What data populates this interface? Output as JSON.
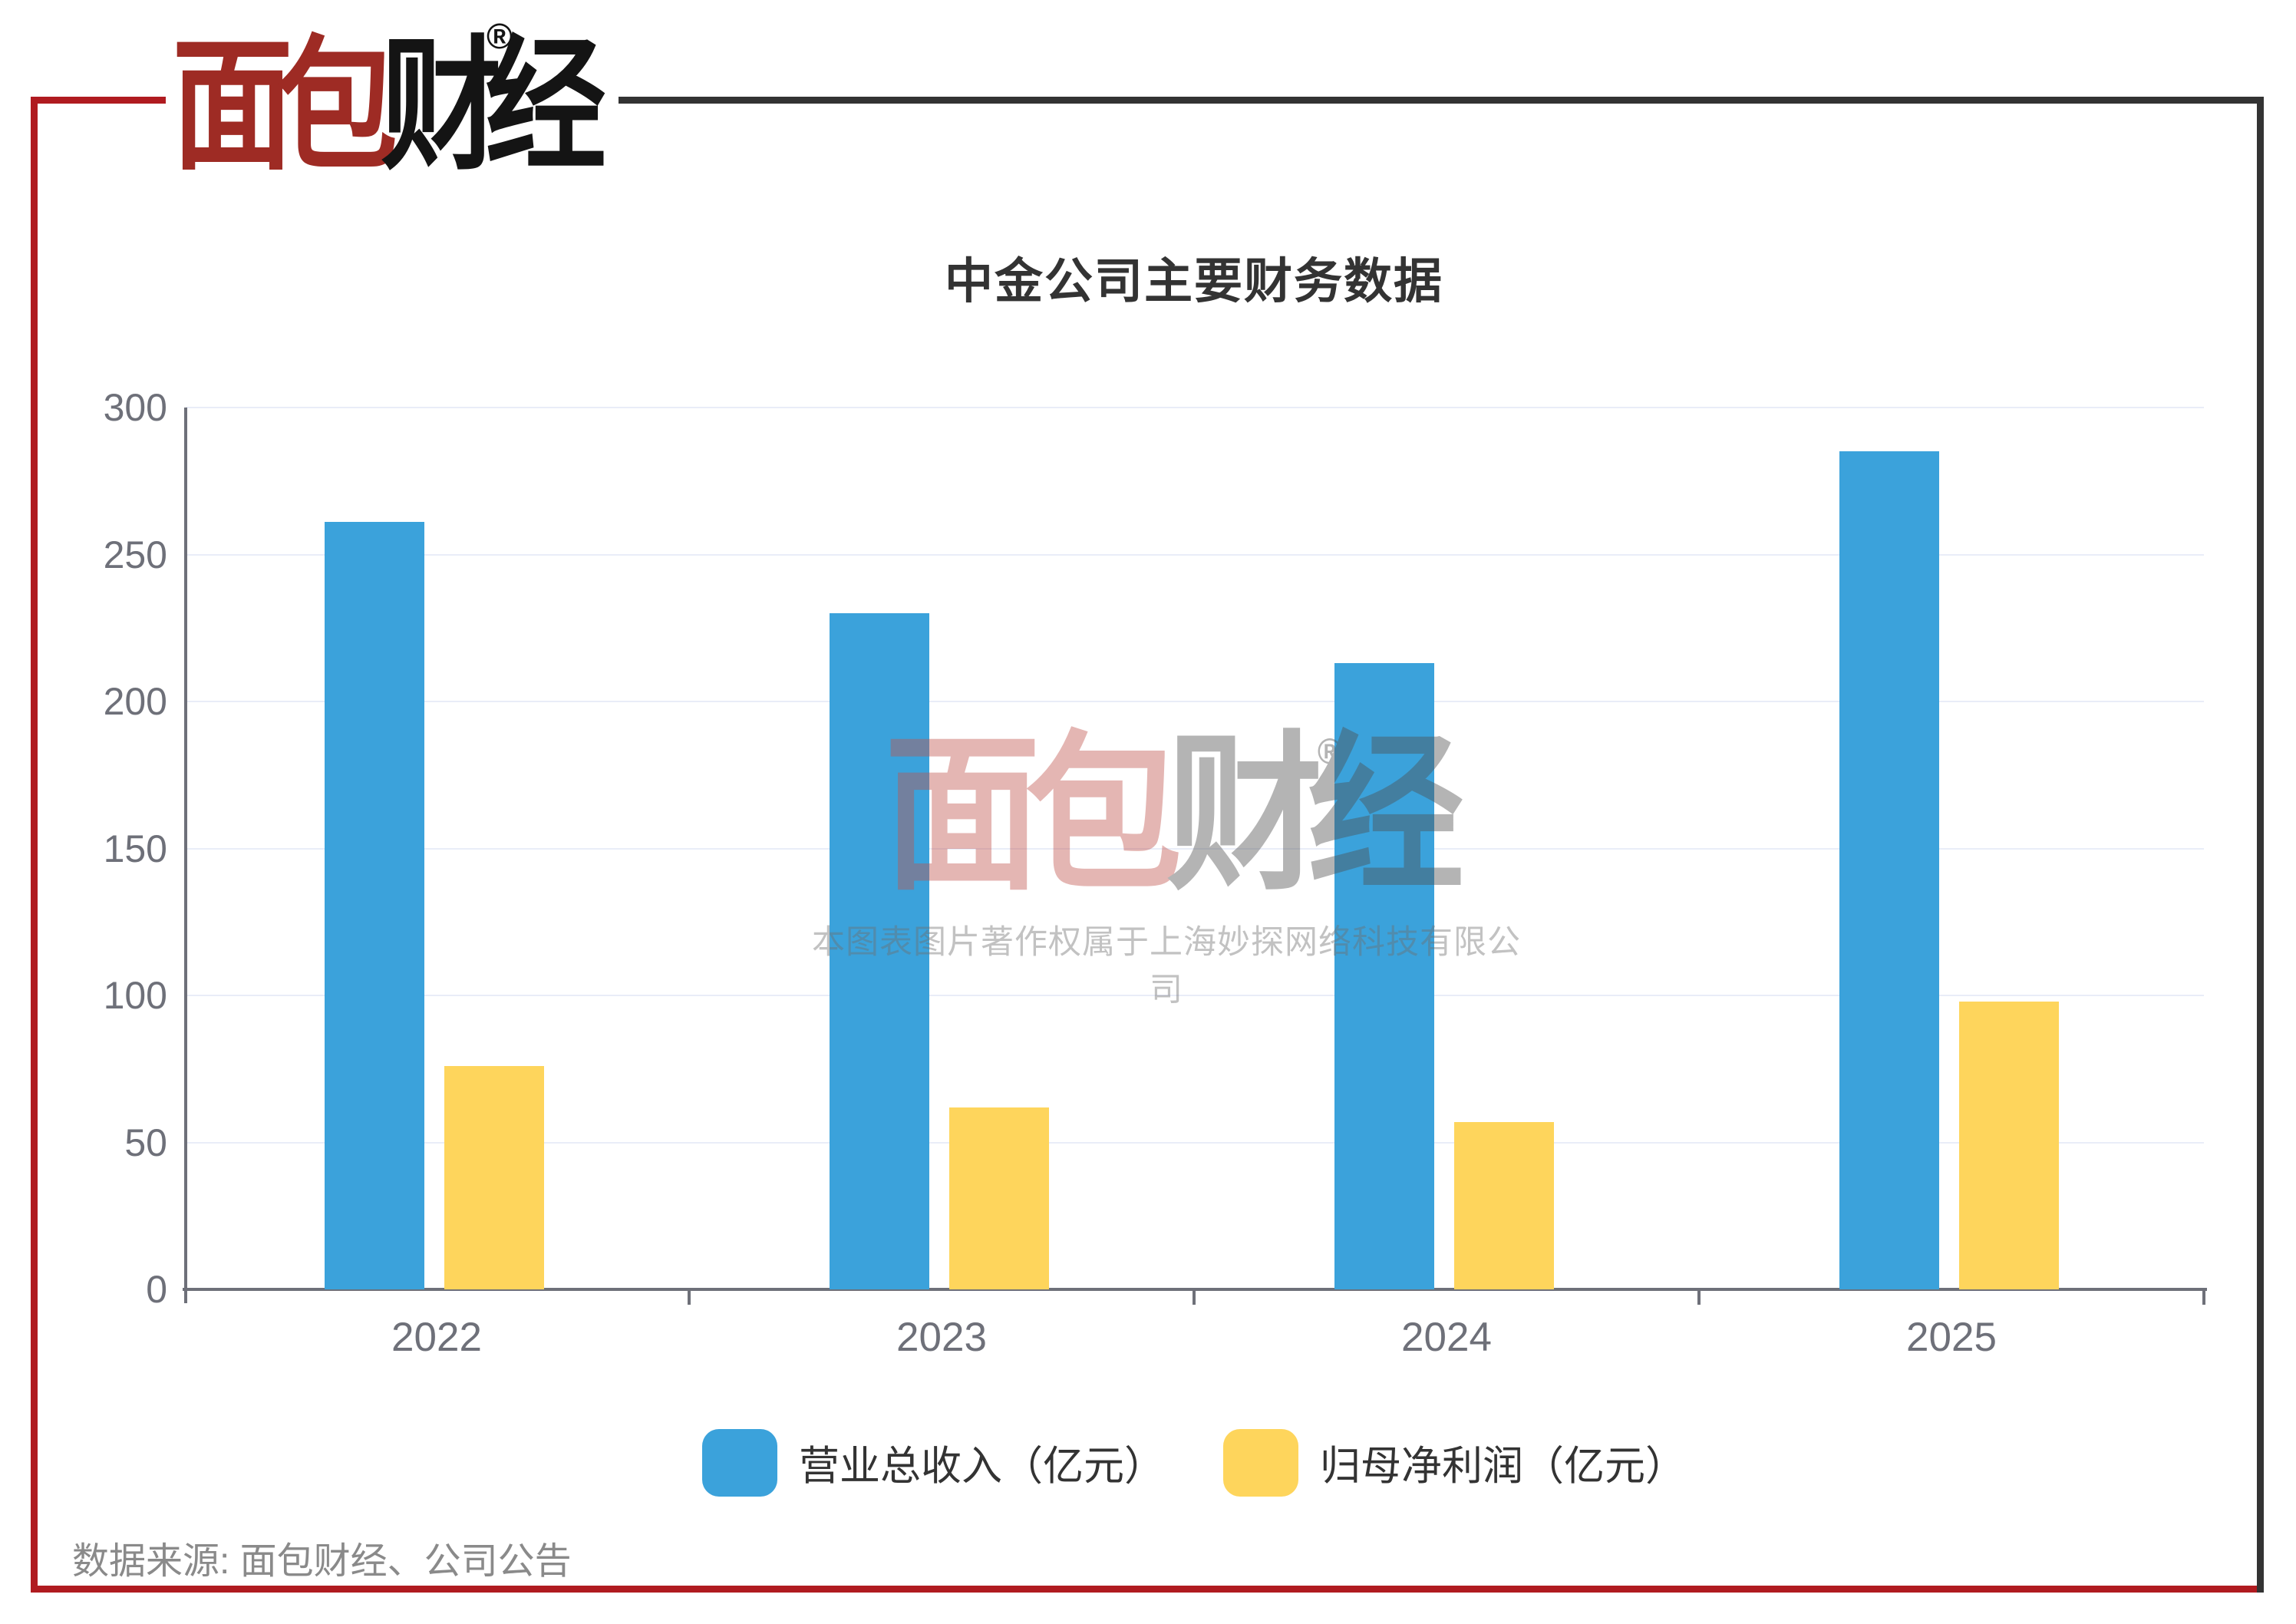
{
  "logo": {
    "part1": "面包",
    "part2": "财经",
    "registered": "®",
    "red_color": "#9E2B24",
    "black_color": "#141414"
  },
  "frame": {
    "red_color": "#B01B20",
    "dark_color": "#333333"
  },
  "chart_data": {
    "type": "bar",
    "title": "中金公司主要财务数据",
    "categories": [
      "2022",
      "2023",
      "2024",
      "2025"
    ],
    "series": [
      {
        "name": "营业总收入（亿元）",
        "color": "#3BA2DB",
        "values": [
          261,
          230,
          213,
          285
        ]
      },
      {
        "name": "归母净利润（亿元）",
        "color": "#FED55C",
        "values": [
          76,
          62,
          57,
          98
        ]
      }
    ],
    "xlabel": "",
    "ylabel": "",
    "ylim": [
      0,
      300
    ],
    "yticks": [
      0,
      50,
      100,
      150,
      200,
      250,
      300
    ],
    "grid": true,
    "legend_position": "bottom",
    "axis_color": "#6E7079",
    "gridline_color": "#E9EDF8"
  },
  "watermark": {
    "logo_part1": "面包",
    "logo_part2": "财经",
    "registered": "®",
    "copyright": "本图表图片著作权属于上海妙探网络科技有限公司"
  },
  "source": {
    "text": "数据来源: 面包财经、公司公告"
  }
}
